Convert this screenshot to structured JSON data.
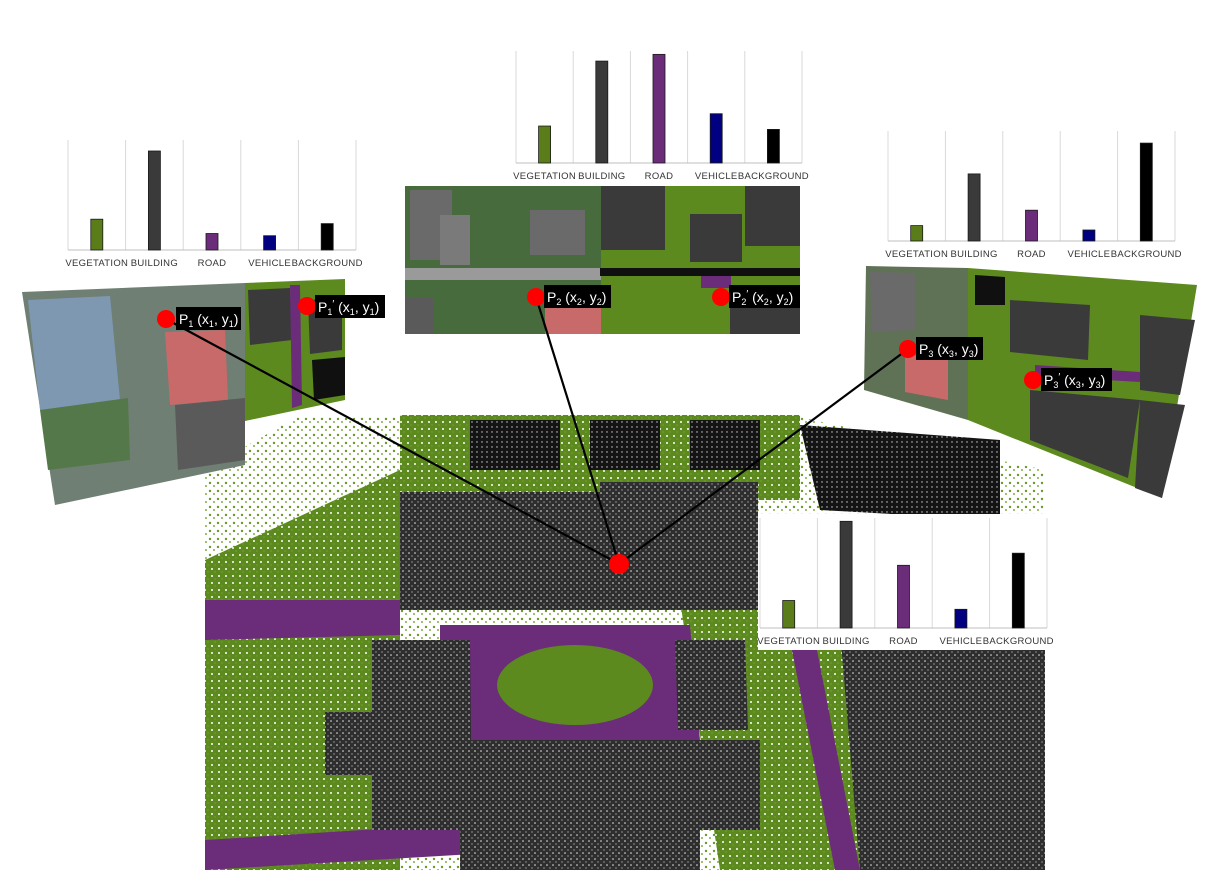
{
  "colors": {
    "vegetation": "#5a7d1a",
    "building": "#3a3a3a",
    "road": "#6b2d7a",
    "vehicle": "#000080",
    "background": "#000000",
    "marker": "#ff0000",
    "white": "#ffffff"
  },
  "chart_data": [
    {
      "type": "bar",
      "categories": [
        "VEGETATION",
        "BUILDING",
        "ROAD",
        "VEHICLE",
        "BACKGROUND"
      ],
      "values": [
        0.28,
        0.9,
        0.15,
        0.13,
        0.24
      ],
      "ylim": [
        0,
        1
      ],
      "grid": false
    },
    {
      "type": "bar",
      "categories": [
        "VEGETATION",
        "BUILDING",
        "ROAD",
        "VEHICLE",
        "BACKGROUND"
      ],
      "values": [
        0.33,
        0.91,
        0.97,
        0.44,
        0.3
      ],
      "ylim": [
        0,
        1
      ],
      "grid": false
    },
    {
      "type": "bar",
      "categories": [
        "VEGETATION",
        "BUILDING",
        "ROAD",
        "VEHICLE",
        "BACKGROUND"
      ],
      "values": [
        0.14,
        0.61,
        0.28,
        0.1,
        0.89
      ],
      "ylim": [
        0,
        1
      ],
      "grid": false
    },
    {
      "type": "bar",
      "categories": [
        "VEGETATION",
        "BUILDING",
        "ROAD",
        "VEHICLE",
        "BACKGROUND"
      ],
      "values": [
        0.25,
        0.97,
        0.57,
        0.17,
        0.68
      ],
      "ylim": [
        0,
        1
      ],
      "grid": false
    }
  ],
  "points": [
    {
      "text": "P",
      "sub": "1",
      "prime": "",
      "coords": "(x",
      "cx": "1",
      "mid": ", y",
      "cy": "1",
      "end": ")"
    },
    {
      "text": "P",
      "sub": "1",
      "prime": "′",
      "coords": "(x",
      "cx": "1",
      "mid": ", y",
      "cy": "1",
      "end": ")"
    },
    {
      "text": "P",
      "sub": "2",
      "prime": "",
      "coords": "(x",
      "cx": "2",
      "mid": ", y",
      "cy": "2",
      "end": ")"
    },
    {
      "text": "P",
      "sub": "2",
      "prime": "′",
      "coords": "(x",
      "cx": "2",
      "mid": ", y",
      "cy": "2",
      "end": ")"
    },
    {
      "text": "P",
      "sub": "3",
      "prime": "",
      "coords": "(x",
      "cx": "3",
      "mid": ", y",
      "cy": "3",
      "end": ")"
    },
    {
      "text": "P",
      "sub": "3",
      "prime": "′",
      "coords": "(x",
      "cx": "3",
      "mid": ", y",
      "cy": "3",
      "end": ")"
    }
  ]
}
